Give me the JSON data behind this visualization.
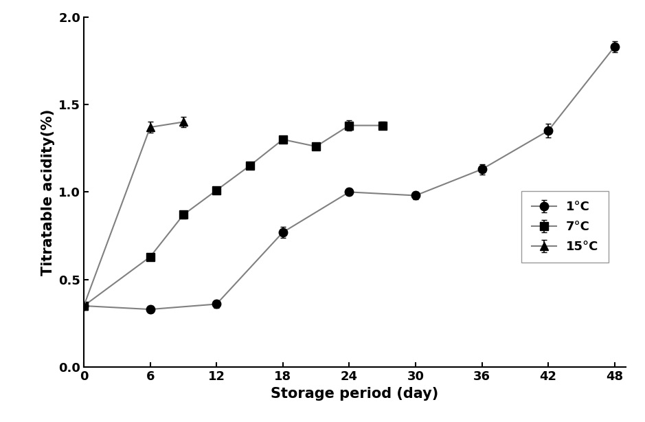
{
  "series": [
    {
      "label": "1°C",
      "marker": "o",
      "x": [
        0,
        6,
        12,
        18,
        24,
        30,
        36,
        42,
        48
      ],
      "y": [
        0.35,
        0.33,
        0.36,
        0.77,
        1.0,
        0.98,
        1.13,
        1.35,
        1.83
      ],
      "yerr": [
        0.02,
        0.02,
        0.02,
        0.03,
        0.02,
        0.02,
        0.03,
        0.04,
        0.03
      ]
    },
    {
      "label": "7°C",
      "marker": "s",
      "x": [
        0,
        6,
        9,
        12,
        15,
        18,
        21,
        24,
        27
      ],
      "y": [
        0.35,
        0.63,
        0.87,
        1.01,
        1.15,
        1.3,
        1.26,
        1.38,
        1.38
      ],
      "yerr": [
        0.02,
        0.02,
        0.02,
        0.02,
        0.02,
        0.02,
        0.02,
        0.03,
        0.02
      ]
    },
    {
      "label": "15°C",
      "marker": "^",
      "x": [
        0,
        6,
        9
      ],
      "y": [
        0.35,
        1.37,
        1.4
      ],
      "yerr": [
        0.02,
        0.03,
        0.03
      ]
    }
  ],
  "xlabel": "Storage period (day)",
  "ylabel": "Titratable acidity(%)",
  "xlim": [
    0,
    49
  ],
  "ylim": [
    0.0,
    2.0
  ],
  "xticks": [
    0,
    6,
    12,
    18,
    24,
    30,
    36,
    42,
    48
  ],
  "yticks": [
    0.0,
    0.5,
    1.0,
    1.5,
    2.0
  ],
  "line_color": "#808080",
  "marker_color": "#000000",
  "markersize": 9,
  "linewidth": 1.5,
  "capsize": 3,
  "elinewidth": 1.2,
  "xlabel_fontsize": 15,
  "ylabel_fontsize": 15,
  "tick_fontsize": 13,
  "legend_fontsize": 13,
  "background_color": "#ffffff"
}
